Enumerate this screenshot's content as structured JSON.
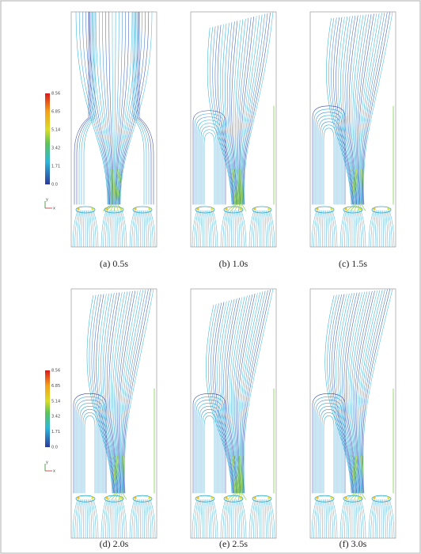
{
  "figure": {
    "panels": [
      {
        "caption": "(a) 0.5s"
      },
      {
        "caption": "(b) 1.0s"
      },
      {
        "caption": "(c) 1.5s"
      },
      {
        "caption": "(d) 2.0s"
      },
      {
        "caption": "(e) 2.5s"
      },
      {
        "caption": "(f) 3.0s"
      }
    ],
    "colorbars": [
      {
        "ticks": [
          "8.56",
          "6.85",
          "5.14",
          "3.42",
          "1.71",
          "0.0"
        ],
        "axis_labels": [
          "y",
          "x"
        ]
      },
      {
        "ticks": [
          "8.56",
          "6.85",
          "5.14",
          "3.42",
          "1.71",
          "0.0"
        ],
        "axis_labels": [
          "y",
          "x"
        ]
      }
    ]
  }
}
